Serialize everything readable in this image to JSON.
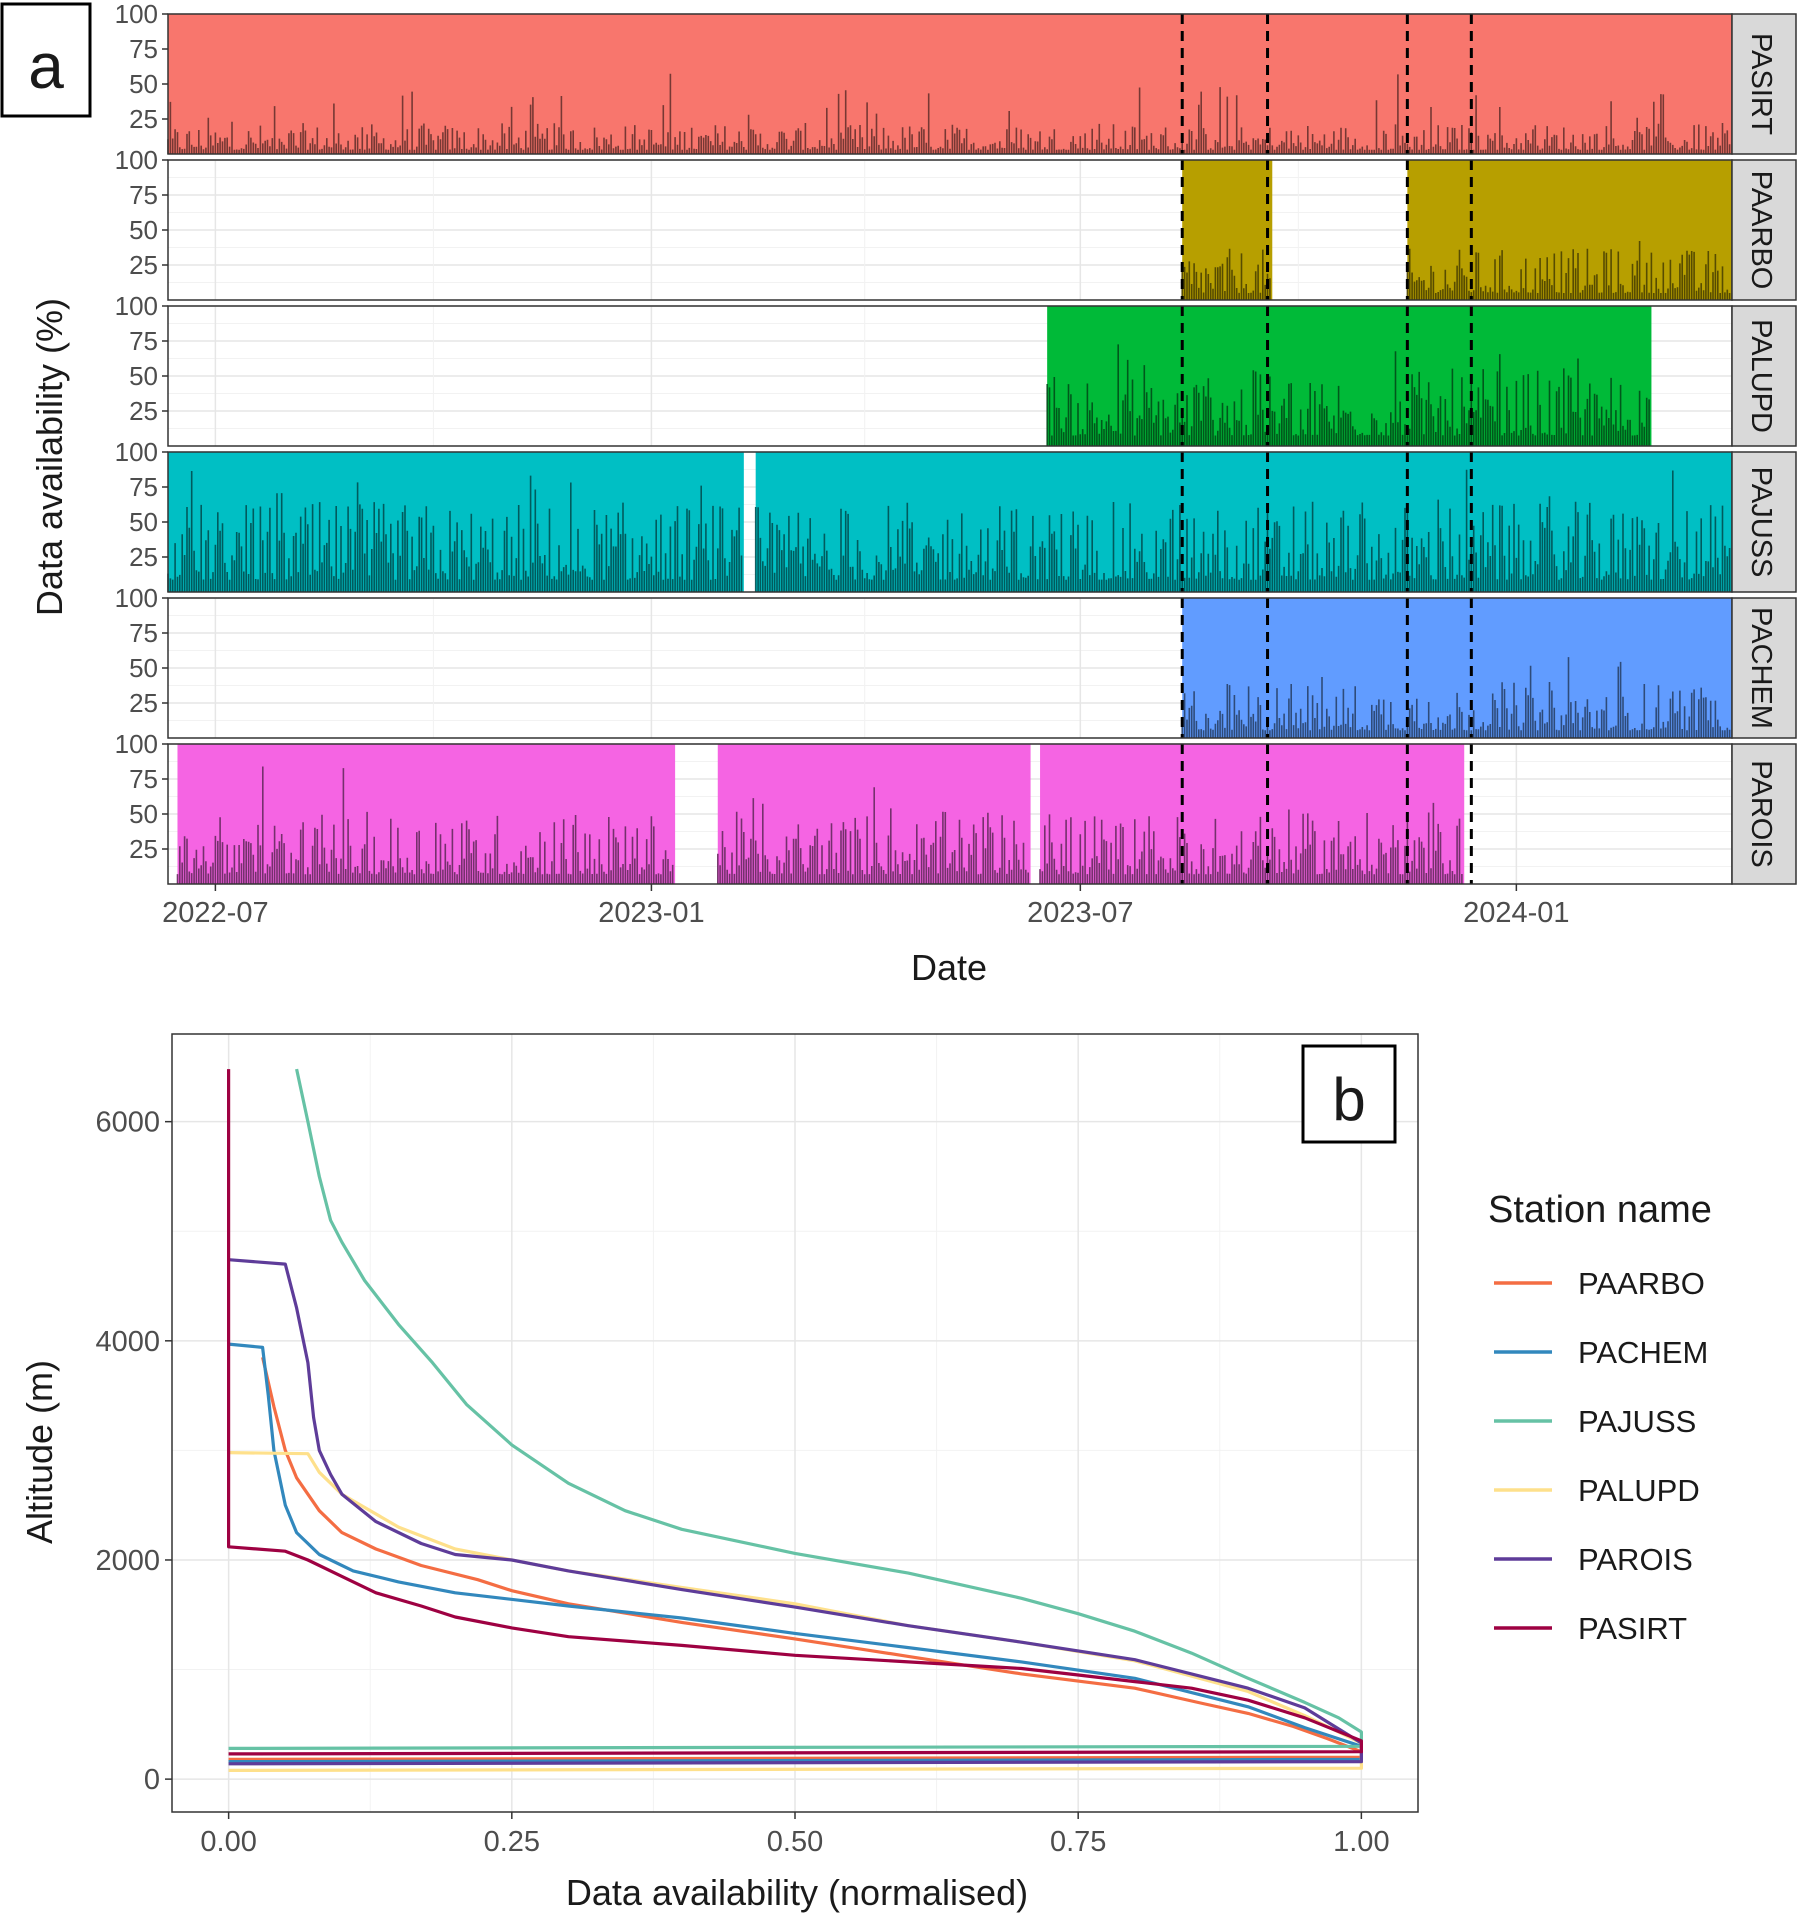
{
  "panel_a": {
    "tag": "a",
    "ylabel": "Data availability (%)",
    "xlabel": "Date",
    "y_ticks": [
      "100",
      "75",
      "50",
      "25"
    ],
    "x_ticks": [
      "2022-07",
      "2023-01",
      "2023-07",
      "2024-01"
    ]
  },
  "panel_b": {
    "tag": "b",
    "ylabel": "Altitude (m)",
    "xlabel": "Data availability (normalised)",
    "x_ticks": [
      "0.00",
      "0.25",
      "0.50",
      "0.75",
      "1.00"
    ],
    "y_ticks": [
      "0",
      "2000",
      "4000",
      "6000"
    ],
    "legend_title": "Station name"
  },
  "chart_data": [
    {
      "type": "bar",
      "title": "",
      "xlabel": "Date",
      "ylabel": "Data availability (%)",
      "ylim": [
        0,
        100
      ],
      "xlim": [
        "2022-06-11",
        "2024-04-01"
      ],
      "x_ticks": [
        "2022-07",
        "2023-01",
        "2023-07",
        "2024-01"
      ],
      "y_ticks": [
        25,
        50,
        75,
        100
      ],
      "vlines_dashed": [
        "2023-08-13",
        "2023-09-18",
        "2023-11-16",
        "2023-12-13"
      ],
      "grid": true,
      "layout": "facets stacked vertically, strip labels on right",
      "series": [
        {
          "name": "PASIRT",
          "color": "#F8766D",
          "active": [
            [
              "2022-06-11",
              "2024-04-01"
            ]
          ],
          "low_mean": 12
        },
        {
          "name": "PAARBO",
          "color": "#B79F00",
          "active": [
            [
              "2023-08-13",
              "2023-09-20"
            ],
            [
              "2023-11-16",
              "2024-04-01"
            ]
          ],
          "low_mean": 20
        },
        {
          "name": "PALUPD",
          "color": "#00BA38",
          "active": [
            [
              "2023-06-17",
              "2024-02-27"
            ]
          ],
          "low_mean": 30
        },
        {
          "name": "PAJUSS",
          "color": "#00BFC4",
          "active": [
            [
              "2022-06-11",
              "2023-02-09"
            ],
            [
              "2023-02-14",
              "2024-04-01"
            ]
          ],
          "low_mean": 35
        },
        {
          "name": "PACHEM",
          "color": "#619CFF",
          "active": [
            [
              "2023-08-13",
              "2024-04-01"
            ]
          ],
          "low_mean": 22
        },
        {
          "name": "PAROIS",
          "color": "#F564E3",
          "active": [
            [
              "2022-06-15",
              "2023-01-11"
            ],
            [
              "2023-01-29",
              "2023-06-10"
            ],
            [
              "2023-06-14",
              "2023-12-10"
            ]
          ],
          "low_mean": 28
        }
      ]
    },
    {
      "type": "line",
      "title": "",
      "xlabel": "Data availability (normalised)",
      "ylabel": "Altitude (m)",
      "xlim": [
        -0.05,
        1.05
      ],
      "ylim": [
        -300,
        6800
      ],
      "x_ticks": [
        0,
        0.25,
        0.5,
        0.75,
        1.0
      ],
      "y_ticks": [
        0,
        2000,
        4000,
        6000
      ],
      "grid": true,
      "legend": {
        "title": "Station name",
        "position": "right"
      },
      "series": [
        {
          "name": "PAARBO",
          "color": "#F46D43",
          "points": [
            [
              0.03,
              3850
            ],
            [
              0.04,
              3400
            ],
            [
              0.05,
              3000
            ],
            [
              0.06,
              2750
            ],
            [
              0.08,
              2450
            ],
            [
              0.1,
              2250
            ],
            [
              0.13,
              2100
            ],
            [
              0.17,
              1950
            ],
            [
              0.22,
              1820
            ],
            [
              0.25,
              1720
            ],
            [
              0.3,
              1600
            ],
            [
              0.4,
              1430
            ],
            [
              0.5,
              1280
            ],
            [
              0.6,
              1120
            ],
            [
              0.7,
              960
            ],
            [
              0.8,
              830
            ],
            [
              0.86,
              690
            ],
            [
              0.9,
              600
            ],
            [
              0.94,
              480
            ],
            [
              0.97,
              370
            ],
            [
              1.0,
              250
            ]
          ]
        },
        {
          "name": "PACHEM",
          "color": "#3288BD",
          "points": [
            [
              0.0,
              3970
            ],
            [
              0.03,
              3940
            ],
            [
              0.035,
              3500
            ],
            [
              0.04,
              3000
            ],
            [
              0.05,
              2500
            ],
            [
              0.06,
              2250
            ],
            [
              0.08,
              2050
            ],
            [
              0.11,
              1900
            ],
            [
              0.15,
              1800
            ],
            [
              0.2,
              1700
            ],
            [
              0.3,
              1580
            ],
            [
              0.4,
              1470
            ],
            [
              0.5,
              1330
            ],
            [
              0.6,
              1200
            ],
            [
              0.7,
              1070
            ],
            [
              0.8,
              920
            ],
            [
              0.9,
              660
            ],
            [
              0.95,
              470
            ],
            [
              1.0,
              300
            ]
          ]
        },
        {
          "name": "PAJUSS",
          "color": "#66C2A5",
          "points": [
            [
              0.06,
              6480
            ],
            [
              0.07,
              6000
            ],
            [
              0.08,
              5500
            ],
            [
              0.09,
              5100
            ],
            [
              0.1,
              4900
            ],
            [
              0.12,
              4550
            ],
            [
              0.15,
              4150
            ],
            [
              0.18,
              3800
            ],
            [
              0.21,
              3420
            ],
            [
              0.25,
              3050
            ],
            [
              0.3,
              2700
            ],
            [
              0.35,
              2450
            ],
            [
              0.4,
              2280
            ],
            [
              0.5,
              2060
            ],
            [
              0.6,
              1880
            ],
            [
              0.7,
              1650
            ],
            [
              0.75,
              1510
            ],
            [
              0.8,
              1350
            ],
            [
              0.85,
              1150
            ],
            [
              0.9,
              920
            ],
            [
              0.95,
              700
            ],
            [
              0.98,
              560
            ],
            [
              1.0,
              430
            ]
          ]
        },
        {
          "name": "PALUPD",
          "color": "#FEE08B",
          "points": [
            [
              0.0,
              2980
            ],
            [
              0.07,
              2970
            ],
            [
              0.08,
              2800
            ],
            [
              0.1,
              2600
            ],
            [
              0.15,
              2300
            ],
            [
              0.2,
              2100
            ],
            [
              0.3,
              1900
            ],
            [
              0.4,
              1750
            ],
            [
              0.5,
              1600
            ],
            [
              0.6,
              1400
            ],
            [
              0.7,
              1250
            ],
            [
              0.8,
              1080
            ],
            [
              0.9,
              800
            ],
            [
              0.95,
              580
            ],
            [
              1.0,
              330
            ]
          ]
        },
        {
          "name": "PAROIS",
          "color": "#5E3C99",
          "points": [
            [
              0.0,
              4740
            ],
            [
              0.05,
              4700
            ],
            [
              0.06,
              4300
            ],
            [
              0.07,
              3800
            ],
            [
              0.075,
              3300
            ],
            [
              0.08,
              3000
            ],
            [
              0.09,
              2780
            ],
            [
              0.1,
              2600
            ],
            [
              0.13,
              2350
            ],
            [
              0.17,
              2150
            ],
            [
              0.2,
              2050
            ],
            [
              0.25,
              2000
            ],
            [
              0.3,
              1900
            ],
            [
              0.4,
              1730
            ],
            [
              0.5,
              1570
            ],
            [
              0.6,
              1400
            ],
            [
              0.7,
              1250
            ],
            [
              0.8,
              1090
            ],
            [
              0.9,
              830
            ],
            [
              0.95,
              650
            ],
            [
              1.0,
              330
            ]
          ]
        },
        {
          "name": "PASIRT",
          "color": "#9E0142",
          "points": [
            [
              0.0,
              6480
            ],
            [
              0.0,
              2120
            ],
            [
              0.05,
              2080
            ],
            [
              0.07,
              2000
            ],
            [
              0.1,
              1850
            ],
            [
              0.13,
              1700
            ],
            [
              0.17,
              1580
            ],
            [
              0.2,
              1480
            ],
            [
              0.25,
              1380
            ],
            [
              0.3,
              1300
            ],
            [
              0.4,
              1220
            ],
            [
              0.5,
              1130
            ],
            [
              0.6,
              1070
            ],
            [
              0.7,
              1010
            ],
            [
              0.75,
              950
            ],
            [
              0.8,
              890
            ],
            [
              0.85,
              830
            ],
            [
              0.9,
              720
            ],
            [
              0.95,
              560
            ],
            [
              1.0,
              350
            ]
          ]
        }
      ]
    }
  ]
}
